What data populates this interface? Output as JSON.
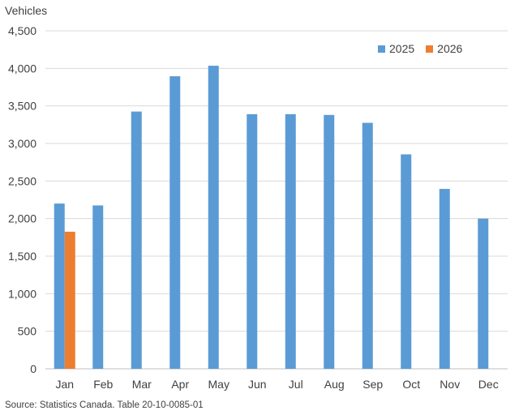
{
  "chart_data": {
    "type": "bar",
    "title": "",
    "xlabel": "",
    "ylabel": "Vehicles",
    "ylim": [
      0,
      4500
    ],
    "yticks": [
      0,
      500,
      1000,
      1500,
      2000,
      2500,
      3000,
      3500,
      4000,
      4500
    ],
    "ytick_labels": [
      "0",
      "500",
      "1,000",
      "1,500",
      "2,000",
      "2,500",
      "3,000",
      "3,500",
      "4,000",
      "4,500"
    ],
    "categories": [
      "Jan",
      "Feb",
      "Mar",
      "Apr",
      "May",
      "Jun",
      "Jul",
      "Aug",
      "Sep",
      "Oct",
      "Nov",
      "Dec"
    ],
    "series": [
      {
        "name": "2025",
        "color": "#5b9bd5",
        "values": [
          2200,
          2175,
          3425,
          3895,
          4035,
          3390,
          3390,
          3380,
          3275,
          2855,
          2395,
          2000
        ]
      },
      {
        "name": "2026",
        "color": "#ed7d31",
        "values": [
          1825,
          null,
          null,
          null,
          null,
          null,
          null,
          null,
          null,
          null,
          null,
          null
        ]
      }
    ],
    "grid": true,
    "legend_position": "top-right"
  },
  "source": "Source: Statistics Canada. Table 20-10-0085-01"
}
